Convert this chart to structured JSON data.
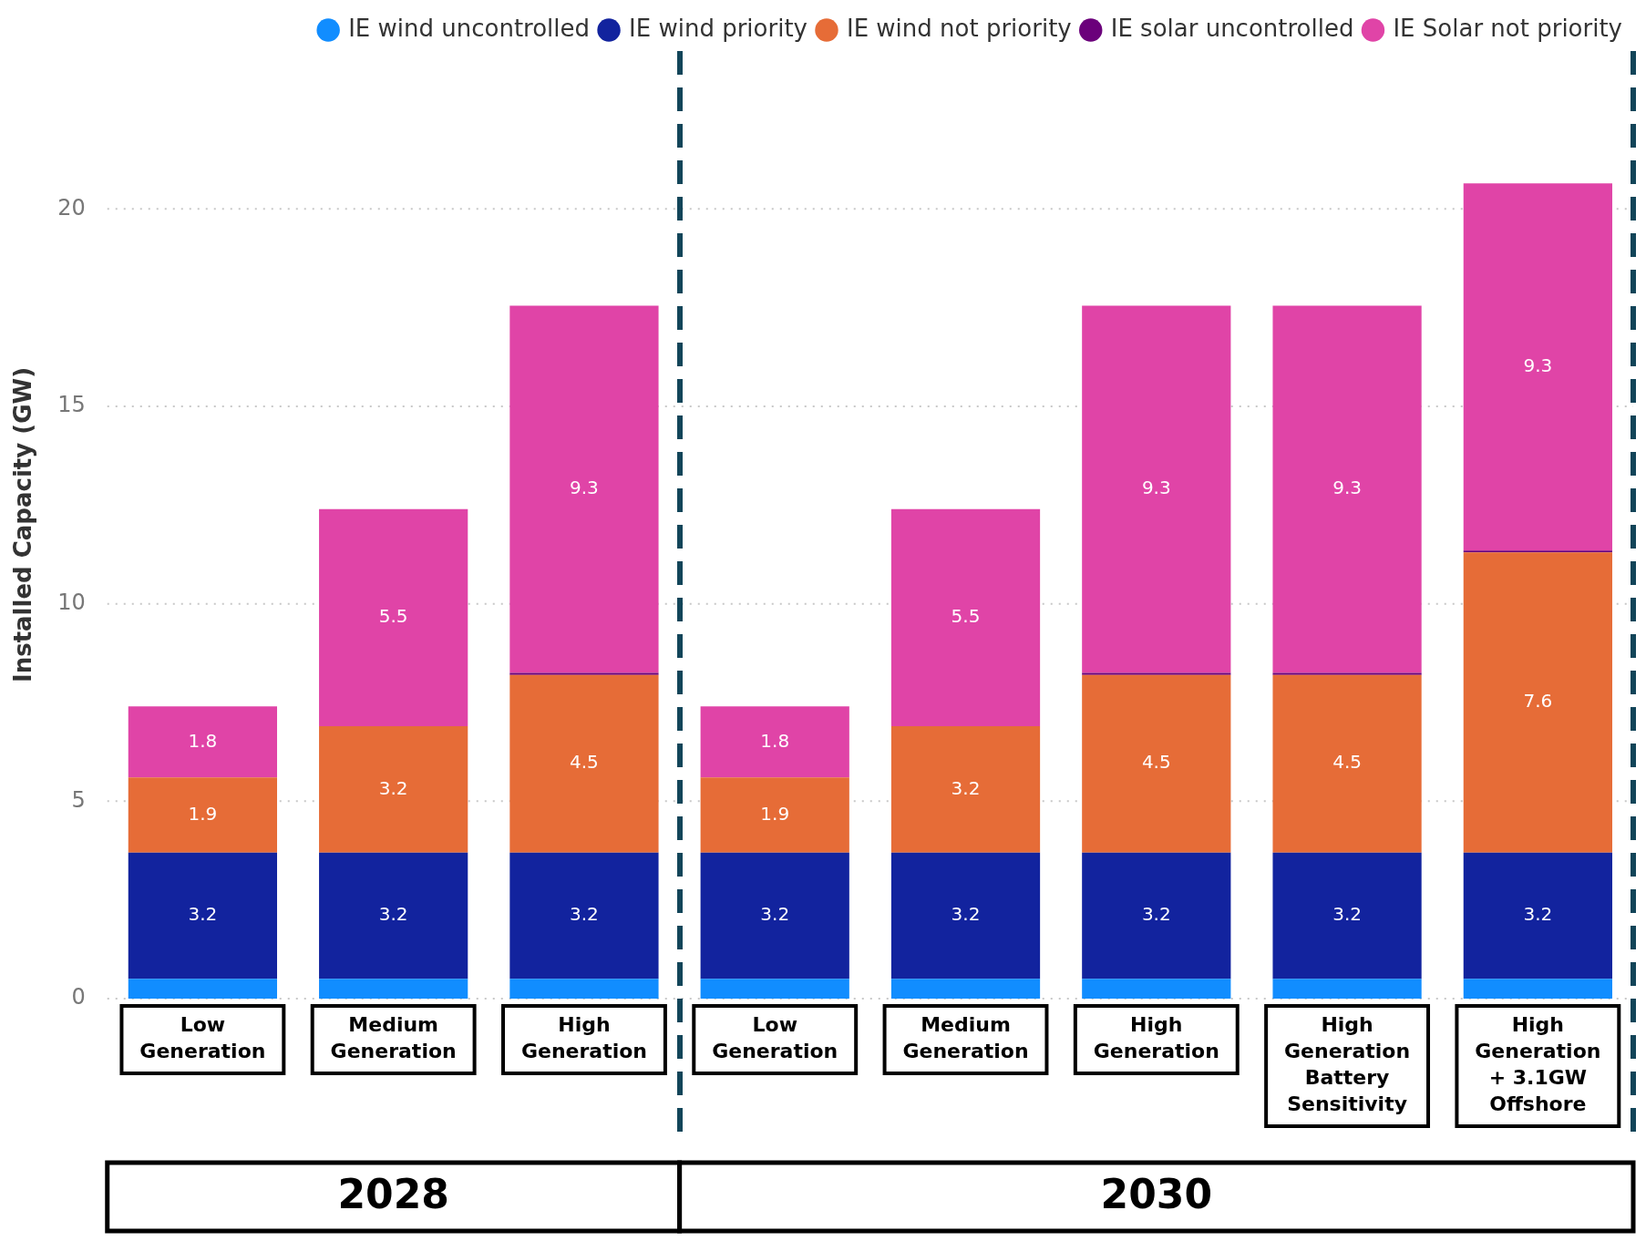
{
  "chart_data": {
    "type": "bar",
    "stacked": true,
    "ylabel": "Installed Capacity (GW)",
    "categories": [
      "Low Generation",
      "Medium Generation",
      "High Generation",
      "Low Generation",
      "Medium Generation",
      "High Generation",
      "High Generation Battery Sensitivity",
      "High Generation + 3.1GW Offshore"
    ],
    "series": [
      {
        "name": "IE wind uncontrolled",
        "color": "#118dff",
        "values": [
          0.5,
          0.5,
          0.5,
          0.5,
          0.5,
          0.5,
          0.5,
          0.5
        ]
      },
      {
        "name": "IE wind priority",
        "color": "#12239e",
        "values": [
          3.2,
          3.2,
          3.2,
          3.2,
          3.2,
          3.2,
          3.2,
          3.2
        ],
        "value_labels": [
          "3.2",
          "3.2",
          "3.2",
          "3.2",
          "3.2",
          "3.2",
          "3.2",
          "3.2"
        ]
      },
      {
        "name": "IE wind not priority",
        "color": "#e66c37",
        "values": [
          1.9,
          3.2,
          4.5,
          1.9,
          3.2,
          4.5,
          4.5,
          7.6
        ],
        "value_labels": [
          "1.9",
          "3.2",
          "4.5",
          "1.9",
          "3.2",
          "4.5",
          "4.5",
          "7.6"
        ]
      },
      {
        "name": "IE solar uncontrolled",
        "color": "#6b007b",
        "values": [
          null,
          null,
          0.05,
          null,
          null,
          0.05,
          0.05,
          0.05
        ]
      },
      {
        "name": "IE Solar not priority",
        "color": "#e044a7",
        "values": [
          1.8,
          5.5,
          9.3,
          1.8,
          5.5,
          9.3,
          9.3,
          9.3
        ],
        "value_labels": [
          "1.8",
          "5.5",
          "9.3",
          "1.8",
          "5.5",
          "9.3",
          "9.3",
          "9.3"
        ]
      }
    ],
    "ylim": [
      0,
      24
    ],
    "yticks": [
      0,
      5,
      10,
      15,
      20
    ],
    "grid": "y",
    "legend": "top right",
    "annotations": [
      "2028",
      "2030"
    ]
  }
}
